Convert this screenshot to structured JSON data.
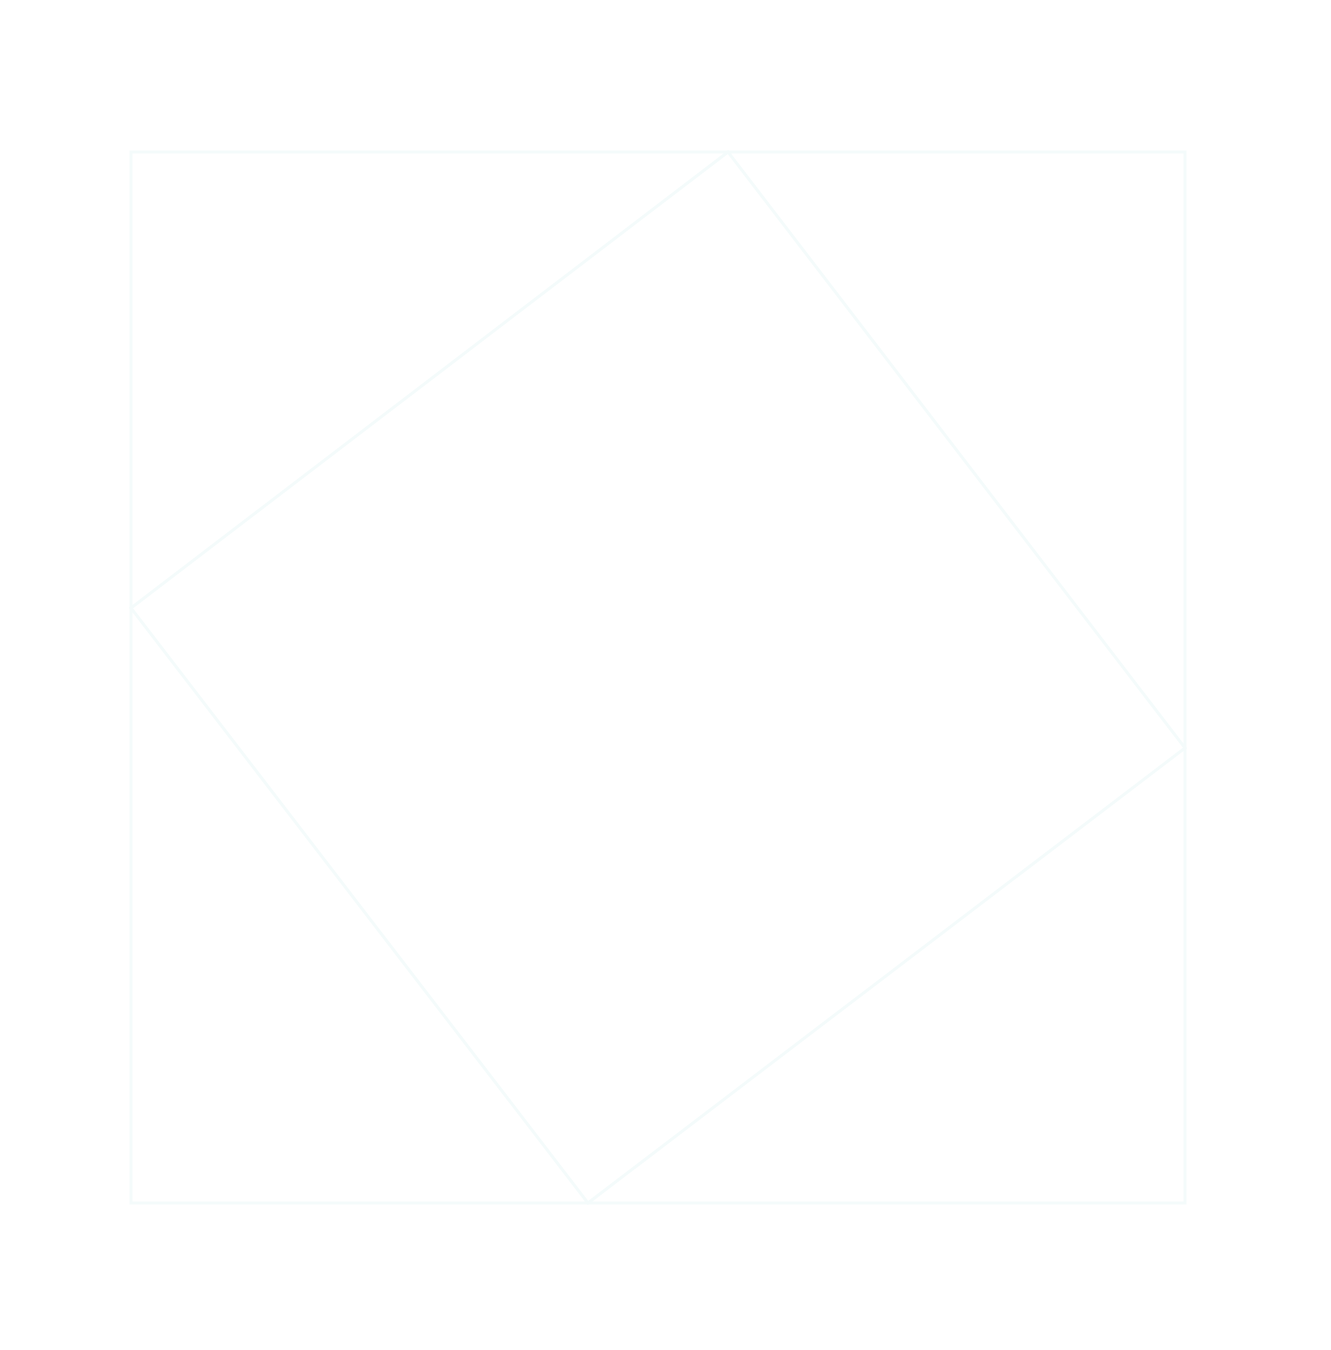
{
  "diagram": {
    "description_visible_text": "",
    "stroke_color": "#f4fbfb",
    "background_color": "#ffffff",
    "shapes": [
      {
        "kind": "outer-square"
      },
      {
        "kind": "inscribed-tilted-square"
      }
    ]
  }
}
